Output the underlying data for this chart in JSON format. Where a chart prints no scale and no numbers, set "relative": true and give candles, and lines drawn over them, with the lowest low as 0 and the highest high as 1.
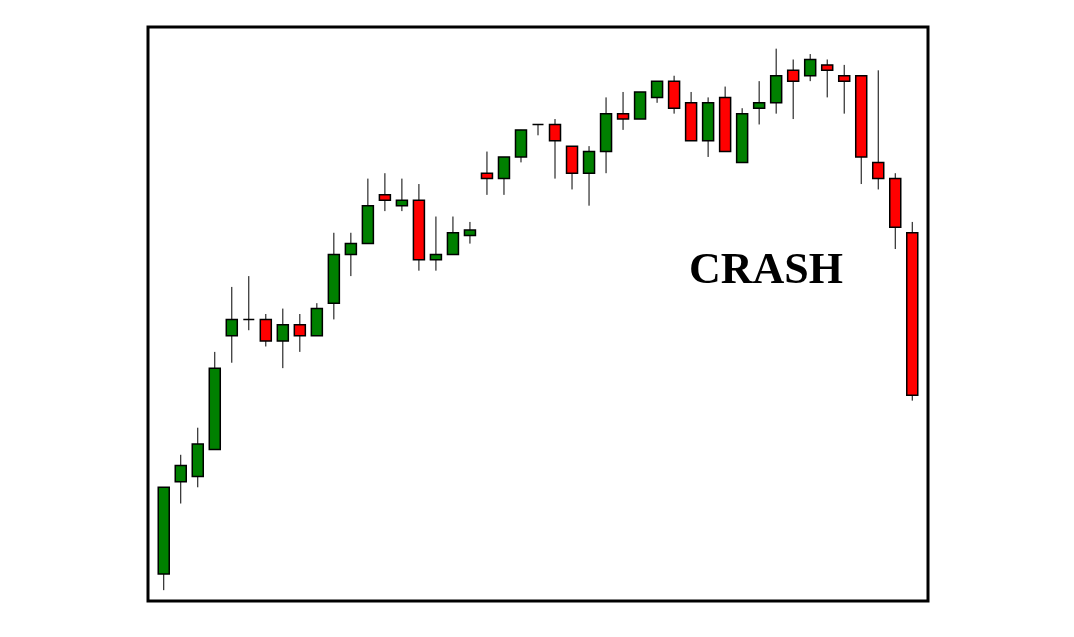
{
  "chart_data": {
    "type": "candlestick",
    "relative": true,
    "categories": [
      null,
      null,
      null,
      null,
      null,
      null,
      null,
      null,
      null,
      null,
      null,
      null,
      null,
      null,
      null,
      null,
      null,
      null,
      null,
      null,
      null,
      null,
      null,
      null,
      null,
      null,
      null,
      null,
      null,
      null,
      null,
      null,
      null,
      null,
      null,
      null,
      null,
      null,
      null,
      null,
      null,
      null,
      null,
      null,
      null
    ],
    "ohlc": [
      [
        0.03,
        0.19,
        0,
        0.19
      ],
      [
        0.2,
        0.25,
        0.16,
        0.23
      ],
      [
        0.21,
        0.3,
        0.19,
        0.27
      ],
      [
        0.26,
        0.44,
        0.26,
        0.41
      ],
      [
        0.47,
        0.56,
        0.42,
        0.5
      ],
      [
        0.5,
        0.58,
        0.48,
        0.5
      ],
      [
        0.5,
        0.51,
        0.45,
        0.46
      ],
      [
        0.46,
        0.52,
        0.41,
        0.49
      ],
      [
        0.49,
        0.51,
        0.44,
        0.47
      ],
      [
        0.47,
        0.53,
        0.47,
        0.52
      ],
      [
        0.53,
        0.66,
        0.5,
        0.62
      ],
      [
        0.62,
        0.66,
        0.58,
        0.64
      ],
      [
        0.64,
        0.76,
        0.64,
        0.71
      ],
      [
        0.73,
        0.77,
        0.7,
        0.72
      ],
      [
        0.71,
        0.76,
        0.7,
        0.72
      ],
      [
        0.72,
        0.75,
        0.59,
        0.61
      ],
      [
        0.61,
        0.69,
        0.59,
        0.62
      ],
      [
        0.62,
        0.69,
        0.62,
        0.66
      ],
      [
        0.655,
        0.68,
        0.64,
        0.665
      ],
      [
        0.77,
        0.81,
        0.73,
        0.76
      ],
      [
        0.76,
        0.8,
        0.73,
        0.8
      ],
      [
        0.8,
        0.85,
        0.79,
        0.85
      ],
      [
        0.86,
        0.86,
        0.84,
        0.86
      ],
      [
        0.86,
        0.87,
        0.76,
        0.83
      ],
      [
        0.82,
        0.82,
        0.74,
        0.77
      ],
      [
        0.77,
        0.82,
        0.71,
        0.81
      ],
      [
        0.81,
        0.91,
        0.77,
        0.88
      ],
      [
        0.88,
        0.92,
        0.85,
        0.87
      ],
      [
        0.87,
        0.92,
        0.87,
        0.92
      ],
      [
        0.91,
        0.94,
        0.9,
        0.94
      ],
      [
        0.94,
        0.95,
        0.88,
        0.89
      ],
      [
        0.9,
        0.92,
        0.83,
        0.83
      ],
      [
        0.83,
        0.91,
        0.8,
        0.9
      ],
      [
        0.91,
        0.93,
        0.81,
        0.81
      ],
      [
        0.79,
        0.89,
        0.79,
        0.88
      ],
      [
        0.89,
        0.94,
        0.86,
        0.9
      ],
      [
        0.9,
        1.0,
        0.88,
        0.95
      ],
      [
        0.96,
        0.98,
        0.87,
        0.94
      ],
      [
        0.95,
        0.99,
        0.94,
        0.98
      ],
      [
        0.97,
        0.98,
        0.91,
        0.96
      ],
      [
        0.95,
        0.97,
        0.88,
        0.94
      ],
      [
        0.95,
        0.95,
        0.75,
        0.8
      ],
      [
        0.79,
        0.96,
        0.74,
        0.76
      ],
      [
        0.76,
        0.77,
        0.63,
        0.67
      ],
      [
        0.66,
        0.68,
        0.35,
        0.36
      ]
    ],
    "colors": [
      "#008000",
      "#008000",
      "#008000",
      "#008000",
      "#008000",
      "#000000",
      "#ff0000",
      "#008000",
      "#ff0000",
      "#008000",
      "#008000",
      "#008000",
      "#008000",
      "#ff0000",
      "#008000",
      "#ff0000",
      "#008000",
      "#008000",
      "#008000",
      "#ff0000",
      "#008000",
      "#008000",
      "#000000",
      "#ff0000",
      "#ff0000",
      "#008000",
      "#008000",
      "#ff0000",
      "#008000",
      "#008000",
      "#ff0000",
      "#ff0000",
      "#008000",
      "#ff0000",
      "#008000",
      "#008000",
      "#008000",
      "#ff0000",
      "#008000",
      "#ff0000",
      "#ff0000",
      "#ff0000",
      "#ff0000",
      "#ff0000",
      "#ff0000"
    ],
    "annotations": [
      "CRASH"
    ]
  }
}
